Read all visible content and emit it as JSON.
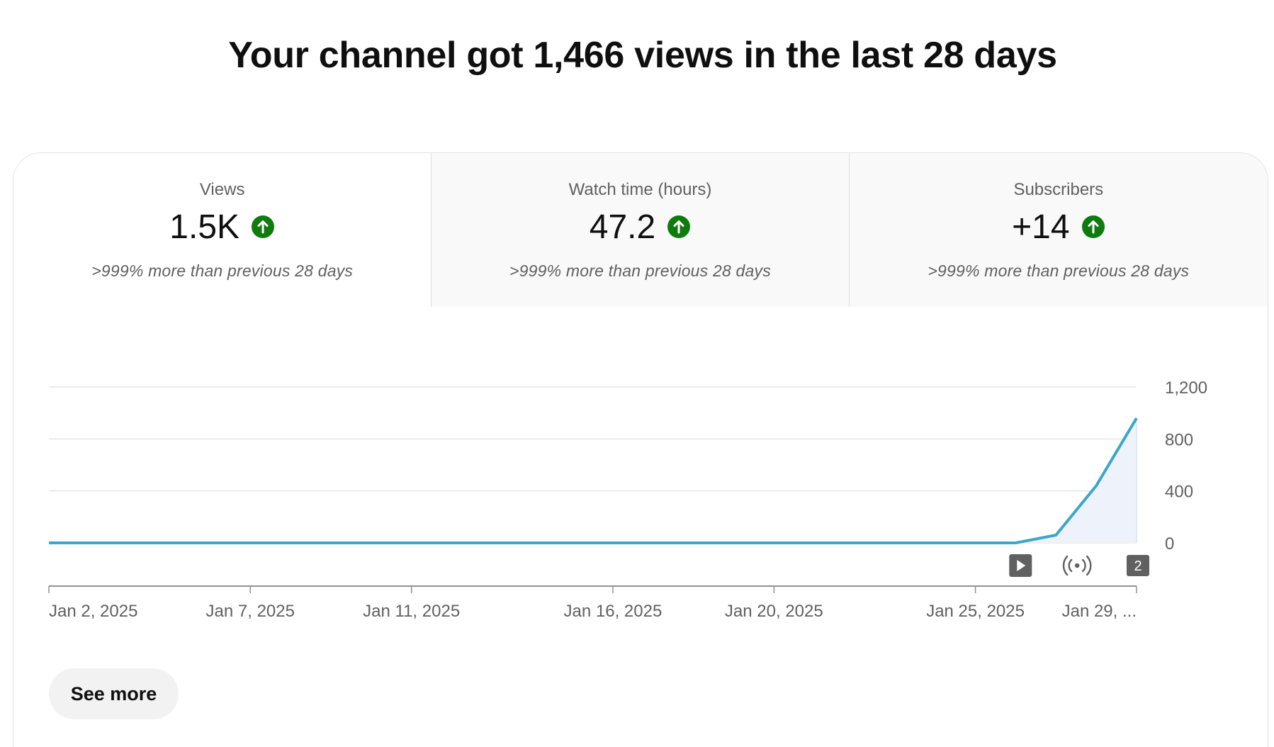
{
  "headline": "Your channel got 1,466 views in the last 28 days",
  "tabs": [
    {
      "title": "Views",
      "value": "1.5K",
      "compare": ">999% more than previous 28 days",
      "trend_icon": "arrow-up-circle-icon",
      "active": true
    },
    {
      "title": "Watch time (hours)",
      "value": "47.2",
      "compare": ">999% more than previous 28 days",
      "trend_icon": "arrow-up-circle-icon",
      "active": false
    },
    {
      "title": "Subscribers",
      "value": "+14",
      "compare": ">999% more than previous 28 days",
      "trend_icon": "arrow-up-circle-icon",
      "active": false
    }
  ],
  "colors": {
    "trend_up": "#0f7b0f",
    "line": "#3ea6c9",
    "area": "#eef3fb",
    "grid": "#e5e5e5",
    "axis": "#909090",
    "marker_bg": "#606060"
  },
  "chart_data": {
    "type": "area",
    "x": [
      "Jan 2, 2025",
      "Jan 3, 2025",
      "Jan 4, 2025",
      "Jan 5, 2025",
      "Jan 6, 2025",
      "Jan 7, 2025",
      "Jan 8, 2025",
      "Jan 9, 2025",
      "Jan 10, 2025",
      "Jan 11, 2025",
      "Jan 12, 2025",
      "Jan 13, 2025",
      "Jan 14, 2025",
      "Jan 15, 2025",
      "Jan 16, 2025",
      "Jan 17, 2025",
      "Jan 18, 2025",
      "Jan 19, 2025",
      "Jan 20, 2025",
      "Jan 21, 2025",
      "Jan 22, 2025",
      "Jan 23, 2025",
      "Jan 24, 2025",
      "Jan 25, 2025",
      "Jan 26, 2025",
      "Jan 27, 2025",
      "Jan 28, 2025",
      "Jan 29, 2025"
    ],
    "values": [
      0,
      0,
      0,
      0,
      0,
      0,
      0,
      0,
      0,
      0,
      0,
      0,
      0,
      0,
      0,
      0,
      0,
      0,
      0,
      0,
      0,
      0,
      0,
      0,
      0,
      60,
      440,
      960
    ],
    "ylim": [
      0,
      1200
    ],
    "yticks": [
      "0",
      "400",
      "800",
      "1,200"
    ],
    "ytick_values": [
      0,
      400,
      800,
      1200
    ],
    "xticks": [
      {
        "label": "Jan 2, 2025",
        "index": 0
      },
      {
        "label": "Jan 7, 2025",
        "index": 5
      },
      {
        "label": "Jan 11, 2025",
        "index": 9
      },
      {
        "label": "Jan 16, 2025",
        "index": 14
      },
      {
        "label": "Jan 20, 2025",
        "index": 18
      },
      {
        "label": "Jan 25, 2025",
        "index": 23
      },
      {
        "label": "Jan 29, ...",
        "index": 27
      }
    ],
    "markers": [
      {
        "icon": "video-upload-icon",
        "index": 25
      },
      {
        "icon": "live-stream-icon",
        "index": 26
      },
      {
        "icon": "multiple-uploads-badge",
        "label": "2",
        "index": 27
      }
    ],
    "grid": true,
    "legend": "none"
  },
  "see_more_label": "See more"
}
